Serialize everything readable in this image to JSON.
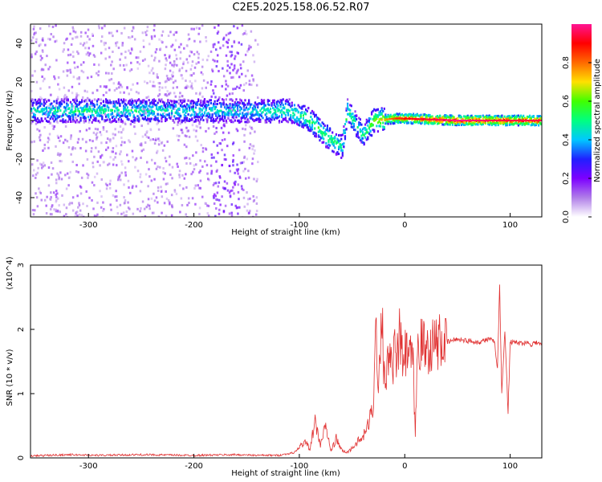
{
  "title": "C2E5.2025.158.06.52.R07",
  "chart_data": [
    {
      "type": "heatmap",
      "xlabel": "Height of straight line (km)",
      "ylabel": "Frequency (Hz)",
      "xlim": [
        -355,
        130
      ],
      "ylim": [
        -50,
        50
      ],
      "xticks": [
        -300,
        -200,
        -100,
        0,
        100
      ],
      "yticks": [
        -40,
        -20,
        0,
        20,
        40
      ],
      "colorbar": {
        "label": "Normalized spectral amplitude",
        "range": [
          0,
          1
        ],
        "ticks": [
          0.0,
          0.2,
          0.4,
          0.6,
          0.8
        ],
        "colors": [
          "#ffffff",
          "#b07ee8",
          "#7d00ff",
          "#2020ff",
          "#00c8ff",
          "#00ff80",
          "#40ff00",
          "#ffe000",
          "#ff6a00",
          "#ff0000",
          "#ff1493"
        ]
      },
      "ridge": [
        {
          "x": -355,
          "f": 5,
          "amp": 0.45
        },
        {
          "x": -300,
          "f": 5,
          "amp": 0.5
        },
        {
          "x": -200,
          "f": 5,
          "amp": 0.45
        },
        {
          "x": -150,
          "f": 5,
          "amp": 0.45
        },
        {
          "x": -110,
          "f": 5,
          "amp": 0.5
        },
        {
          "x": -90,
          "f": 0,
          "amp": 0.55
        },
        {
          "x": -75,
          "f": -8,
          "amp": 0.55
        },
        {
          "x": -60,
          "f": -14,
          "amp": 0.5
        },
        {
          "x": -55,
          "f": 5,
          "amp": 0.5
        },
        {
          "x": -40,
          "f": -8,
          "amp": 0.5
        },
        {
          "x": -30,
          "f": 0,
          "amp": 0.6
        },
        {
          "x": -10,
          "f": 1,
          "amp": 0.8
        },
        {
          "x": 0,
          "f": 1,
          "amp": 0.85
        },
        {
          "x": 50,
          "f": 0,
          "amp": 0.95
        },
        {
          "x": 90,
          "f": 0,
          "amp": 0.9
        },
        {
          "x": 130,
          "f": 0,
          "amp": 0.9
        }
      ]
    },
    {
      "type": "line",
      "xlabel": "Height of straight line (km)",
      "ylabel": "SNR (10 * v/v)",
      "yscale_label": "(x10^4)",
      "xlim": [
        -355,
        130
      ],
      "ylim": [
        0,
        3
      ],
      "xticks": [
        -300,
        -200,
        -100,
        0,
        100
      ],
      "yticks": [
        0,
        1,
        2,
        3
      ],
      "series": [
        {
          "color": "#e03030",
          "x": [
            -355,
            -320,
            -290,
            -250,
            -200,
            -160,
            -140,
            -120,
            -105,
            -95,
            -90,
            -85,
            -80,
            -75,
            -70,
            -65,
            -60,
            -55,
            -50,
            -45,
            -40,
            -35,
            -30,
            -27,
            -25,
            -22,
            -20,
            -18,
            -15,
            -12,
            -10,
            -8,
            -5,
            -2,
            0,
            5,
            8,
            10,
            12,
            15,
            20,
            25,
            30,
            35,
            40,
            50,
            60,
            70,
            80,
            85,
            88,
            90,
            92,
            95,
            98,
            100,
            105,
            110,
            115,
            120,
            125,
            130
          ],
          "y": [
            0.03,
            0.05,
            0.04,
            0.05,
            0.04,
            0.05,
            0.04,
            0.04,
            0.08,
            0.25,
            0.15,
            0.55,
            0.2,
            0.5,
            0.1,
            0.3,
            0.12,
            0.08,
            0.15,
            0.25,
            0.3,
            0.5,
            0.8,
            2.1,
            1.0,
            2.4,
            1.5,
            1.2,
            1.6,
            1.3,
            1.7,
            1.4,
            1.9,
            1.5,
            1.6,
            1.6,
            1.4,
            0.3,
            1.7,
            1.8,
            1.7,
            1.75,
            1.8,
            1.8,
            1.8,
            1.85,
            1.82,
            1.8,
            1.85,
            1.8,
            1.4,
            2.7,
            1.0,
            2.0,
            0.7,
            1.8,
            1.8,
            1.78,
            1.8,
            1.77,
            1.8,
            1.75
          ]
        }
      ]
    }
  ]
}
